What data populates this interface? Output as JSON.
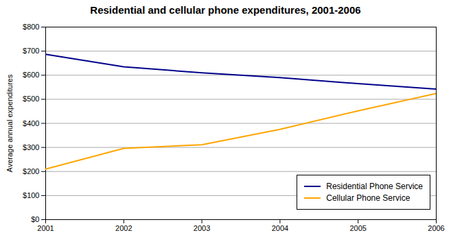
{
  "chart_data": {
    "type": "line",
    "title": "Residential and cellular phone expenditures, 2001-2006",
    "ylabel": "Average annual expenditures",
    "x": [
      2001,
      2002,
      2003,
      2004,
      2005,
      2006
    ],
    "series": [
      {
        "name": "Residential Phone Service",
        "color": "#00008B",
        "values": [
          687,
          635,
          610,
          590,
          565,
          542
        ]
      },
      {
        "name": "Cellular Phone Service",
        "color": "#FFA500",
        "values": [
          210,
          296,
          311,
          375,
          452,
          524
        ]
      }
    ],
    "xlim": [
      2001,
      2006
    ],
    "xticks": [
      2001,
      2002,
      2003,
      2004,
      2005,
      2006
    ],
    "ylim": [
      0,
      800
    ],
    "yticks": [
      {
        "value": 0,
        "label": "$0"
      },
      {
        "value": 100,
        "label": "$100"
      },
      {
        "value": 200,
        "label": "$200"
      },
      {
        "value": 300,
        "label": "$300"
      },
      {
        "value": 400,
        "label": "$400"
      },
      {
        "value": 500,
        "label": "$500"
      },
      {
        "value": 600,
        "label": "$600"
      },
      {
        "value": 700,
        "label": "$700"
      },
      {
        "value": 800,
        "label": "$800"
      }
    ],
    "grid": "y",
    "legend": "lower right"
  }
}
